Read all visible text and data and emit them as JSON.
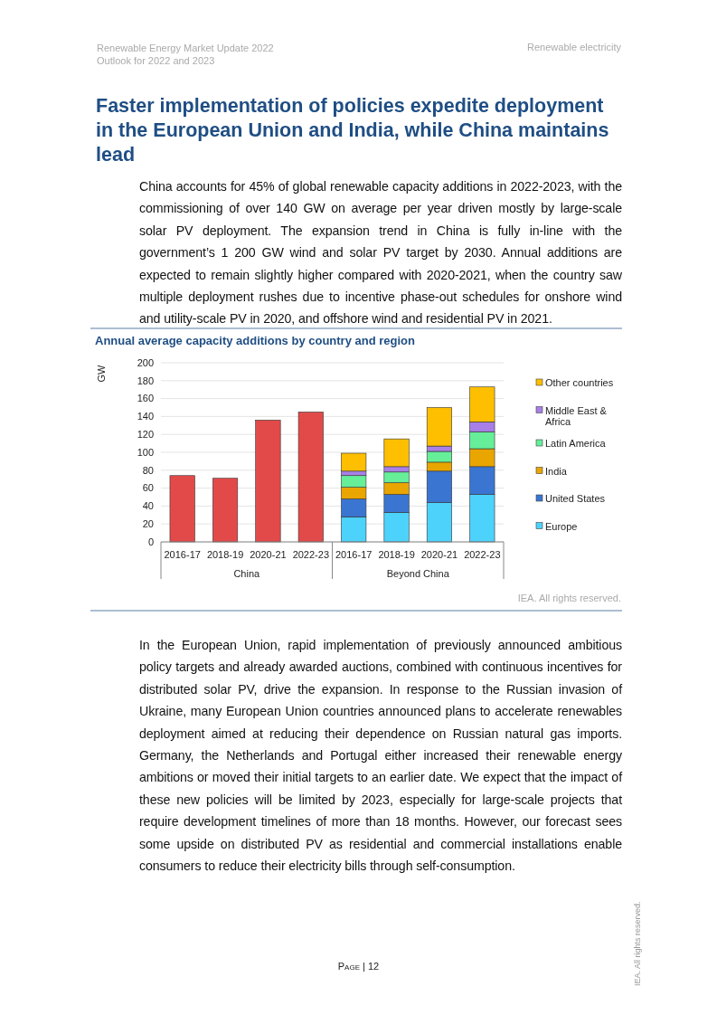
{
  "chart_data": {
    "type": "bar",
    "title": "Annual average capacity additions by country and region",
    "ylabel": "GW",
    "categories": [
      "2016-17",
      "2018-19",
      "2020-21",
      "2022-23",
      "2016-17",
      "2018-19",
      "2020-21",
      "2022-23"
    ],
    "stacked": true,
    "legend": "right",
    "grid": "y",
    "ylim": [
      0,
      200
    ],
    "yticks": [
      0,
      20,
      40,
      60,
      80,
      100,
      120,
      140,
      160,
      180,
      200
    ],
    "series": [
      {
        "color": "#e24a4a",
        "values": [
          74,
          71,
          136,
          145,
          null,
          null,
          null,
          null
        ]
      },
      {
        "name": "Europe",
        "color": "#4dd2fb",
        "values": [
          null,
          null,
          null,
          null,
          28,
          33,
          44,
          53
        ]
      },
      {
        "name": "United States",
        "color": "#3a75d1",
        "values": [
          null,
          null,
          null,
          null,
          20,
          20,
          35,
          31
        ]
      },
      {
        "name": "India",
        "color": "#e9a500",
        "values": [
          null,
          null,
          null,
          null,
          13,
          13,
          10,
          20
        ]
      },
      {
        "name": "Latin America",
        "color": "#66ee99",
        "values": [
          null,
          null,
          null,
          null,
          13,
          12,
          12,
          19
        ]
      },
      {
        "name": "Middle East & Africa",
        "color": "#a87fe6",
        "values": [
          null,
          null,
          null,
          null,
          5,
          6,
          6,
          11
        ]
      },
      {
        "name": "Other countries",
        "color": "#fdbf00",
        "values": [
          null,
          null,
          null,
          null,
          20,
          31,
          43,
          39
        ]
      }
    ],
    "annotations": [
      "Renewable Energy Market Update 2022",
      "Outlook for 2022 and 2023",
      "Renewable electricity",
      "Faster implementation of policies expedite deployment in the European Union and India, while China maintains lead",
      "China accounts for 45% of global renewable capacity additions in 2022-2023, with the commissioning of over 140 GW on average per year driven mostly by large-scale solar PV deployment. The expansion trend in China is fully in-line with the government’s 1 200 GW wind and solar PV target by 2030. Annual additions are expected to remain slightly higher compared with 2020-2021, when the country saw multiple deployment rushes due to incentive phase-out schedules for onshore wind and utility-scale PV in 2020, and offshore wind and residential PV in 2021.",
      "China",
      "Beyond China",
      "IEA. All rights reserved.",
      "In the European Union, rapid implementation of previously announced ambitious policy targets and already awarded auctions, combined with continuous incentives for distributed solar PV, drive the expansion. In response to the Russian invasion of Ukraine, many European Union countries announced plans to accelerate renewables deployment aimed at reducing their dependence on Russian natural gas imports. Germany, the Netherlands and Portugal either increased their renewable energy ambitions or moved their initial targets to an earlier date. We expect that the impact of these new policies will be limited by 2023, especially for large-scale projects that require development timelines of more than 18 months. However, our forecast sees some upside on distributed PV as residential and commercial installations enable consumers to reduce their electricity bills through self-consumption.",
      "Page | 12",
      "IEA. All rights reserved."
    ]
  }
}
